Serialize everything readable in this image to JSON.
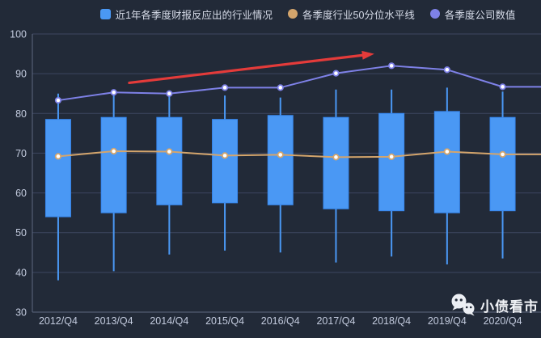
{
  "legend": {
    "items": [
      {
        "label": "近1年各季度财报反应出的行业情况",
        "shape": "square",
        "color": "#4a98f4"
      },
      {
        "label": "各季度行业50分位水平线",
        "shape": "circle",
        "color": "#d4a56c"
      },
      {
        "label": "各季度公司数值",
        "shape": "circle",
        "color": "#7e81e7"
      }
    ]
  },
  "watermark": {
    "text": "小债看市"
  },
  "chart_data": {
    "type": "candlestick",
    "categories": [
      "2012/Q4",
      "2013/Q4",
      "2014/Q4",
      "2015/Q4",
      "2016/Q4",
      "2017/Q4",
      "2018/Q4",
      "2019/Q4",
      "2020/Q4"
    ],
    "ylim": [
      30,
      100
    ],
    "y_ticks": [
      30,
      40,
      50,
      60,
      70,
      80,
      90,
      100
    ],
    "grid": "horizontal-only",
    "legend_position": "top-center",
    "series": [
      {
        "name": "近1年各季度财报反应出的行业情况",
        "type": "candlestick",
        "color": "#4a98f4",
        "border_color": "#3787ee",
        "data": [
          {
            "low": 38,
            "box_low": 54,
            "box_high": 78.5,
            "high": 85
          },
          {
            "low": 40.3,
            "box_low": 55,
            "box_high": 79,
            "high": 85.5
          },
          {
            "low": 44.5,
            "box_low": 57,
            "box_high": 79,
            "high": 84.5
          },
          {
            "low": 45.5,
            "box_low": 57.5,
            "box_high": 78.5,
            "high": 84.5
          },
          {
            "low": 45,
            "box_low": 57,
            "box_high": 79.5,
            "high": 84
          },
          {
            "low": 42.5,
            "box_low": 56,
            "box_high": 79,
            "high": 86
          },
          {
            "low": 44,
            "box_low": 55.5,
            "box_high": 80,
            "high": 86
          },
          {
            "low": 42,
            "box_low": 55,
            "box_high": 80.5,
            "high": 86.5
          },
          {
            "low": 43.5,
            "box_low": 55.5,
            "box_high": 79,
            "high": 85.5
          }
        ]
      },
      {
        "name": "各季度行业50分位水平线",
        "type": "line",
        "color": "#d4a56c",
        "values": [
          69.2,
          70.5,
          70.4,
          69.4,
          69.6,
          69,
          69.1,
          70.4,
          69.7
        ]
      },
      {
        "name": "各季度公司数值",
        "type": "line",
        "color": "#7e81e7",
        "values": [
          83.3,
          85.3,
          85,
          86.5,
          86.5,
          90.1,
          92,
          91,
          86.7
        ]
      }
    ],
    "annotation_arrow": {
      "color": "#e43b3a",
      "from_category_index": 1.28,
      "from_value": 87.7,
      "to_category_index": 5.69,
      "to_value": 95
    },
    "style": {
      "background": "#222a38",
      "grid_color": "#3d4660",
      "axis_color": "#5d6880",
      "label_color": "#c3cbde",
      "legend_text_color": "#d6dbe8",
      "marker_fill": "#ffffff"
    }
  }
}
